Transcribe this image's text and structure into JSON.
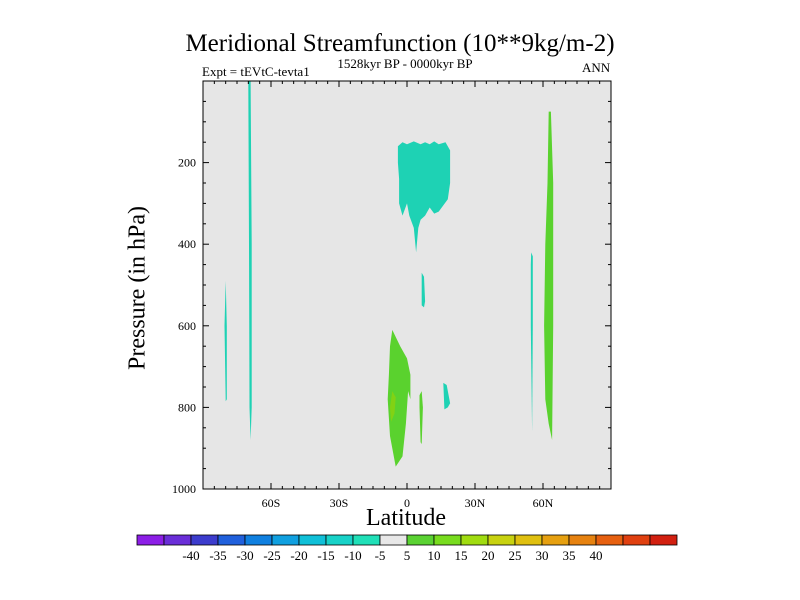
{
  "chart_data": {
    "type": "contour",
    "title": "Meridional Streamfunction (10**9kg/m-2)",
    "subtitle_left": "Expt = tEVtC-tevta1",
    "subtitle_center": "1528kyr BP - 0000kyr BP",
    "subtitle_right": "ANN",
    "xlabel": "Latitude",
    "ylabel": "Pressure (in hPa)",
    "xlim": [
      -90,
      90
    ],
    "ylim": [
      1000,
      0
    ],
    "x_ticks": [
      {
        "value": -60,
        "label": "60S"
      },
      {
        "value": -30,
        "label": "30S"
      },
      {
        "value": 0,
        "label": "0"
      },
      {
        "value": 30,
        "label": "30N"
      },
      {
        "value": 60,
        "label": "60N"
      }
    ],
    "y_ticks": [
      {
        "value": 200,
        "label": "200"
      },
      {
        "value": 400,
        "label": "400"
      },
      {
        "value": 600,
        "label": "600"
      },
      {
        "value": 800,
        "label": "800"
      },
      {
        "value": 1000,
        "label": "1000"
      }
    ],
    "background_color": "#e6e6e6",
    "colorbar": {
      "colors": [
        "#8c1ee6",
        "#6a2ed8",
        "#3c3ccd",
        "#2060dc",
        "#1080e0",
        "#10a0e0",
        "#10c0d8",
        "#18d2c8",
        "#20e0b8",
        "#e8e8e8",
        "#5ad232",
        "#78dc1e",
        "#a0dc10",
        "#c8d210",
        "#e0c010",
        "#e6a010",
        "#e68210",
        "#e66010",
        "#e04010",
        "#d22010"
      ],
      "labels": [
        "-40",
        "-35",
        "-30",
        "-25",
        "-20",
        "-15",
        "-10",
        "-5",
        "5",
        "10",
        "15",
        "20",
        "25",
        "30",
        "35",
        "40"
      ]
    },
    "regions": [
      {
        "level": "-5 to 0",
        "color": "#1ed2b4",
        "points": [
          [
            -80,
            490
          ],
          [
            -79.5,
            600
          ],
          [
            -79.5,
            780
          ],
          [
            -80,
            785
          ],
          [
            -80.5,
            600
          ]
        ]
      },
      {
        "level": "-5 to 0",
        "color": "#1ed2b4",
        "points": [
          [
            -70,
            0
          ],
          [
            -69,
            0
          ],
          [
            -68.5,
            400
          ],
          [
            -68.5,
            800
          ],
          [
            -69,
            880
          ],
          [
            -69.5,
            800
          ],
          [
            -69.7,
            400
          ]
        ]
      },
      {
        "level": "-5 to 0",
        "color": "#1ed2b4",
        "points": [
          [
            -4,
            160
          ],
          [
            -2,
            150
          ],
          [
            0,
            155
          ],
          [
            3,
            148
          ],
          [
            6,
            155
          ],
          [
            8,
            150
          ],
          [
            10,
            155
          ],
          [
            12,
            148
          ],
          [
            14,
            155
          ],
          [
            17,
            150
          ],
          [
            19,
            170
          ],
          [
            19,
            250
          ],
          [
            18,
            290
          ],
          [
            14,
            320
          ],
          [
            12,
            325
          ],
          [
            10,
            310
          ],
          [
            8,
            330
          ],
          [
            6,
            340
          ],
          [
            5,
            360
          ],
          [
            4,
            420
          ],
          [
            3,
            360
          ],
          [
            1,
            330
          ],
          [
            0,
            300
          ],
          [
            -2,
            330
          ],
          [
            -3.5,
            300
          ],
          [
            -3.5,
            240
          ],
          [
            -4,
            200
          ]
        ]
      },
      {
        "level": "-5 to 0",
        "color": "#1ed2b4",
        "points": [
          [
            6.5,
            470
          ],
          [
            7.5,
            480
          ],
          [
            8,
            540
          ],
          [
            7.5,
            555
          ],
          [
            6.5,
            550
          ],
          [
            6.5,
            500
          ]
        ]
      },
      {
        "level": "-5 to 0",
        "color": "#1ed2b4",
        "points": [
          [
            16,
            740
          ],
          [
            17.5,
            745
          ],
          [
            19,
            790
          ],
          [
            18,
            800
          ],
          [
            16.5,
            805
          ]
        ]
      },
      {
        "level": "-5 to 0",
        "color": "#1ed2b4",
        "points": [
          [
            54.8,
            420
          ],
          [
            55.5,
            430
          ],
          [
            55.5,
            600
          ],
          [
            55.2,
            860
          ],
          [
            54.6,
            600
          ],
          [
            54.6,
            450
          ]
        ]
      },
      {
        "level": "0 to 5",
        "color": "#5ad22e",
        "points": [
          [
            -6.5,
            610
          ],
          [
            -3,
            650
          ],
          [
            0,
            680
          ],
          [
            1.5,
            720
          ],
          [
            1.5,
            780
          ],
          [
            0.5,
            760
          ],
          [
            -0.5,
            840
          ],
          [
            -2,
            920
          ],
          [
            -5,
            945
          ],
          [
            -7.5,
            870
          ],
          [
            -8.5,
            780
          ],
          [
            -8,
            720
          ],
          [
            -7.5,
            650
          ]
        ]
      },
      {
        "level": "5 to 10",
        "color": "#82d214",
        "points": [
          [
            -6.5,
            760
          ],
          [
            -5,
            775
          ],
          [
            -5.5,
            815
          ],
          [
            -7,
            835
          ],
          [
            -7.5,
            800
          ]
        ]
      },
      {
        "level": "0 to 5",
        "color": "#5ad22e",
        "points": [
          [
            5.5,
            770
          ],
          [
            6.5,
            760
          ],
          [
            7,
            800
          ],
          [
            6.5,
            890
          ],
          [
            6,
            885
          ],
          [
            5.5,
            800
          ]
        ]
      },
      {
        "level": "0 to 5",
        "color": "#5ad22e",
        "points": [
          [
            62.5,
            75
          ],
          [
            63.5,
            75
          ],
          [
            64.5,
            250
          ],
          [
            64.5,
            600
          ],
          [
            64,
            880
          ],
          [
            62.5,
            840
          ],
          [
            61,
            780
          ],
          [
            60.5,
            600
          ],
          [
            61,
            400
          ],
          [
            62,
            250
          ]
        ]
      }
    ]
  }
}
